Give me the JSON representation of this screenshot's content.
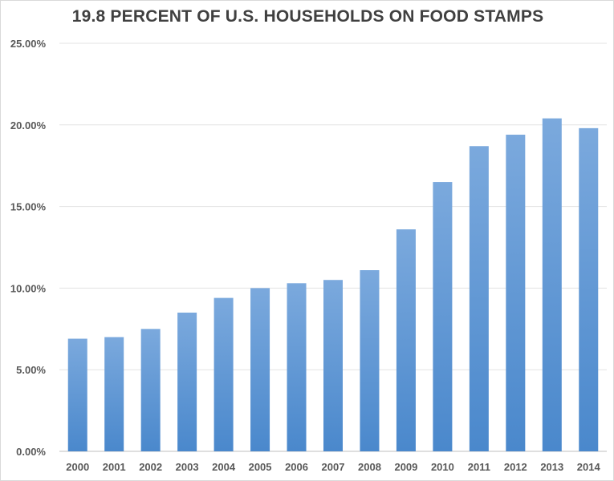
{
  "chart_data": {
    "type": "bar",
    "title": "19.8 PERCENT OF U.S. HOUSEHOLDS ON FOOD STAMPS",
    "xlabel": "",
    "ylabel": "",
    "categories": [
      "2000",
      "2001",
      "2002",
      "2003",
      "2004",
      "2005",
      "2006",
      "2007",
      "2008",
      "2009",
      "2010",
      "2011",
      "2012",
      "2013",
      "2014"
    ],
    "values": [
      6.9,
      7.0,
      7.5,
      8.5,
      9.4,
      10.0,
      10.3,
      10.5,
      11.1,
      13.6,
      16.5,
      18.7,
      19.4,
      20.4,
      19.8
    ],
    "ylim": [
      0,
      25
    ],
    "yticks": [
      0,
      5,
      10,
      15,
      20,
      25
    ],
    "ytick_labels": [
      "0.00%",
      "5.00%",
      "10.00%",
      "15.00%",
      "20.00%",
      "25.00%"
    ],
    "grid": true,
    "colors": {
      "bar_top": "#7ba9dd",
      "bar_bottom": "#4a88cc",
      "grid": "#e3e3e3",
      "axis": "#bfbfbf",
      "text": "#595959"
    }
  }
}
